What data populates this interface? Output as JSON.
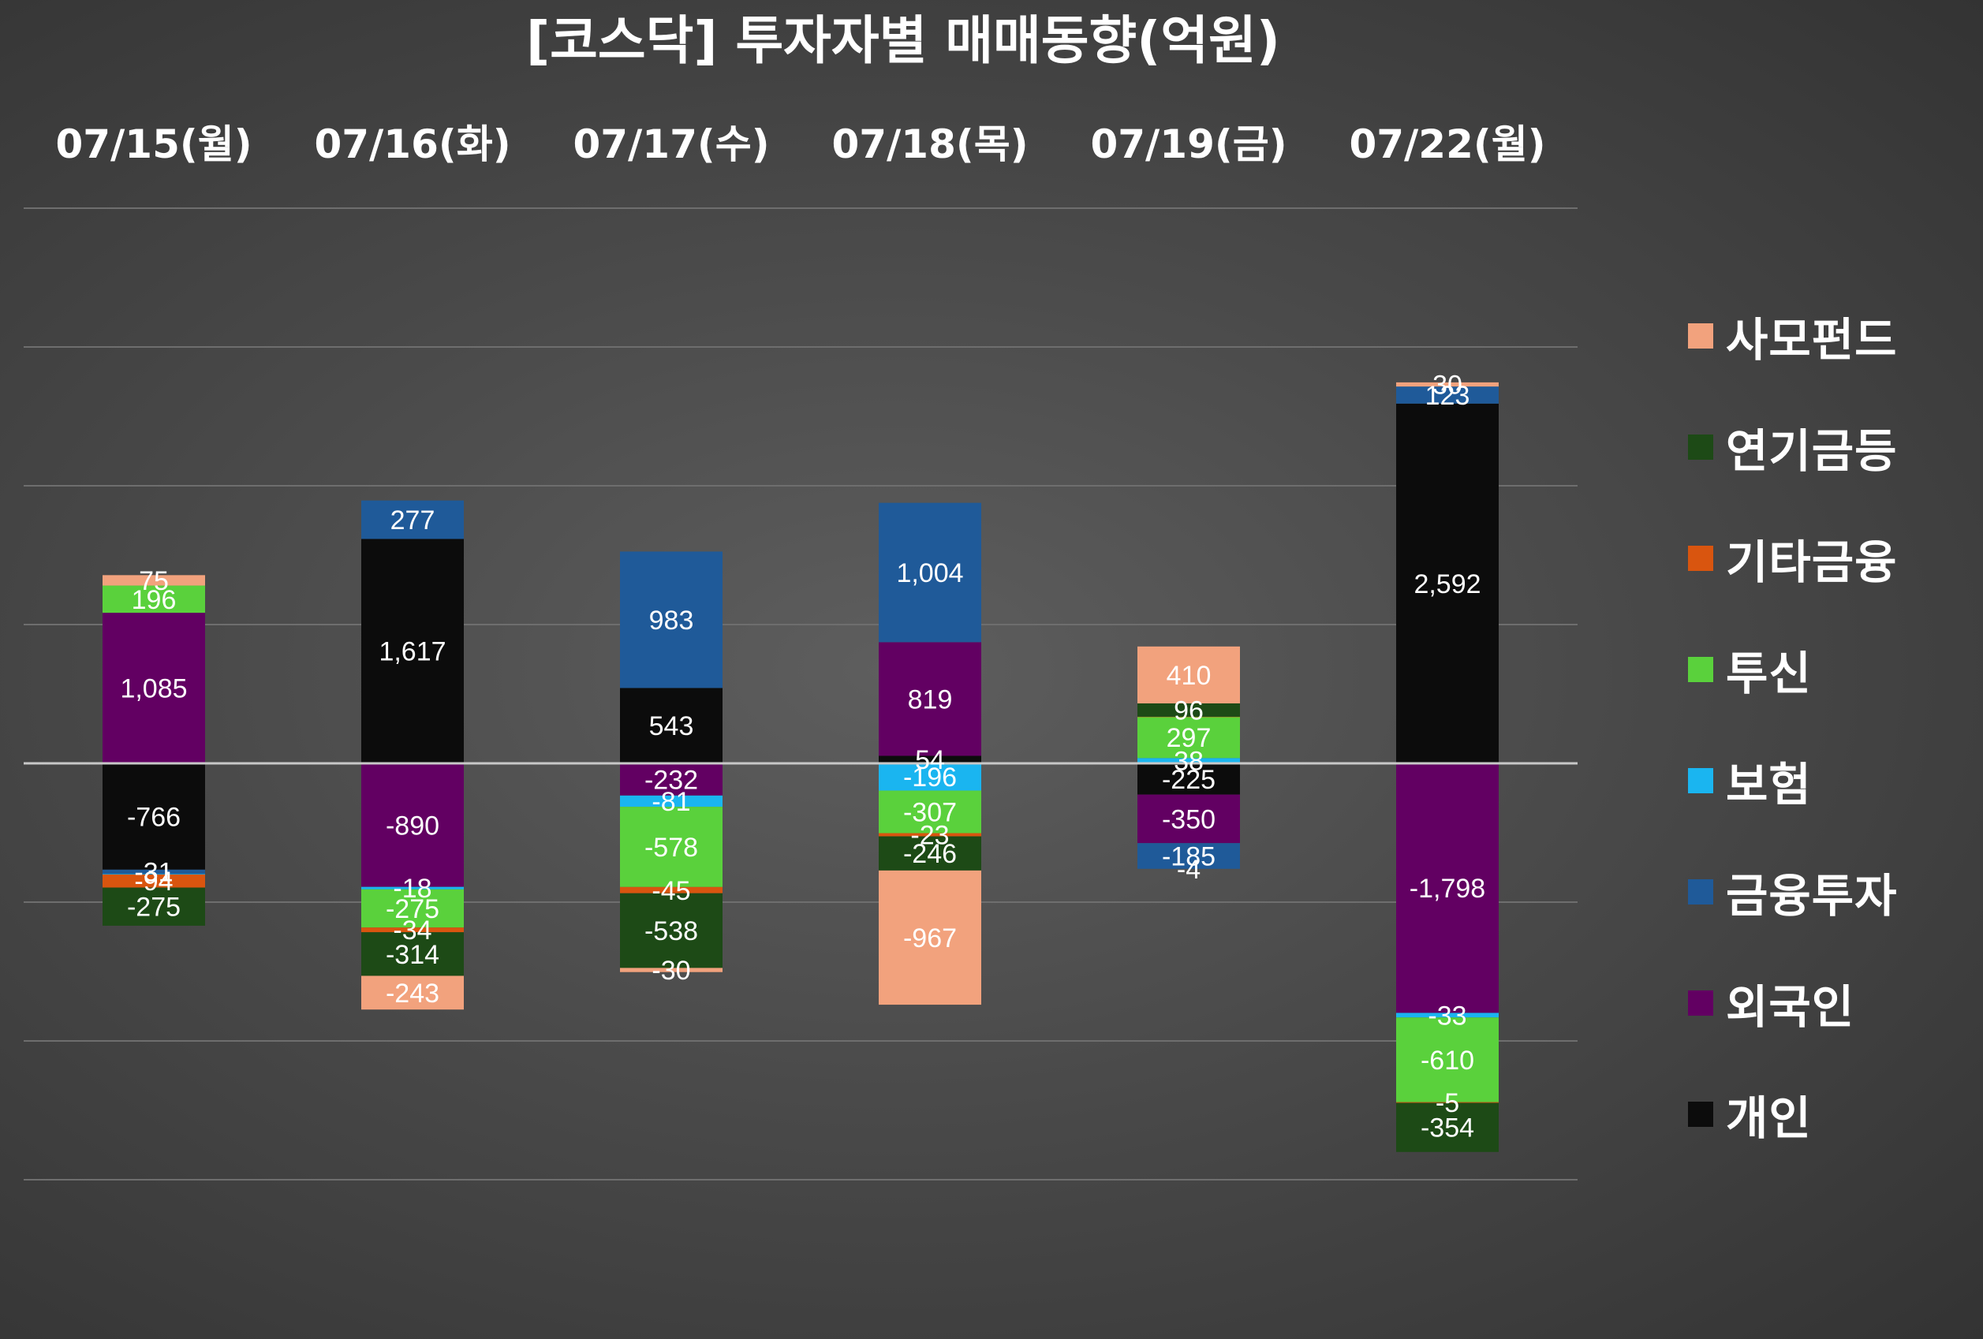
{
  "chart_data": {
    "type": "bar",
    "stacked": true,
    "title": "[코스닥] 투자자별 매매동향(억원)",
    "categories": [
      "07/15(월)",
      "07/16(화)",
      "07/17(수)",
      "07/18(목)",
      "07/19(금)",
      "07/22(월)"
    ],
    "series": [
      {
        "name": "개인",
        "color": "#0c0c0c",
        "values": [
          -766,
          1617,
          543,
          54,
          -225,
          2592
        ]
      },
      {
        "name": "외국인",
        "color": "#620062",
        "values": [
          1085,
          -890,
          -232,
          819,
          -350,
          -1798
        ]
      },
      {
        "name": "금융투자",
        "color": "#1f5a99",
        "values": [
          -31,
          277,
          983,
          1004,
          -185,
          123
        ]
      },
      {
        "name": "보험",
        "color": "#1ab5f0",
        "values": [
          -4,
          -18,
          -81,
          -196,
          38,
          -33
        ]
      },
      {
        "name": "투신",
        "color": "#5ad13c",
        "values": [
          196,
          -275,
          -578,
          -307,
          297,
          -610
        ]
      },
      {
        "name": "기타금융",
        "color": "#d9550f",
        "values": [
          -94,
          -34,
          -45,
          -23,
          1,
          -5
        ]
      },
      {
        "name": "연기금등",
        "color": "#1d4a16",
        "values": [
          -275,
          -314,
          -538,
          -246,
          96,
          -354
        ]
      },
      {
        "name": "사모펀드",
        "color": "#f2a27d",
        "values": [
          75,
          -243,
          -30,
          -967,
          410,
          30
        ]
      }
    ],
    "value_labels": [
      [
        "-766",
        "1,617",
        "543",
        "54",
        "-225",
        "2,592"
      ],
      [
        "1,085",
        "-890",
        "-232",
        "819",
        "-350",
        "-1,798"
      ],
      [
        "-31",
        "277",
        "983",
        "1,004",
        "-185",
        "123"
      ],
      [
        "",
        "-18",
        "-81",
        "-196",
        "38",
        "-33"
      ],
      [
        "196",
        "-275",
        "-578",
        "-307",
        "297",
        "-610"
      ],
      [
        "-94",
        "-34",
        "-45",
        "-23",
        "",
        "-5"
      ],
      [
        "-275",
        "-314",
        "-538",
        "-246",
        "96",
        "-354"
      ],
      [
        "75",
        "-243",
        "-30",
        "-967",
        "410",
        "30"
      ]
    ],
    "extra_labels": [
      {
        "category": 4,
        "text": "-4"
      }
    ],
    "ylim": [
      -3000,
      4000
    ],
    "grid": true,
    "legend_position": "right",
    "legend_order": [
      "사모펀드",
      "연기금등",
      "기타금융",
      "투신",
      "보험",
      "금융투자",
      "외국인",
      "개인"
    ]
  }
}
